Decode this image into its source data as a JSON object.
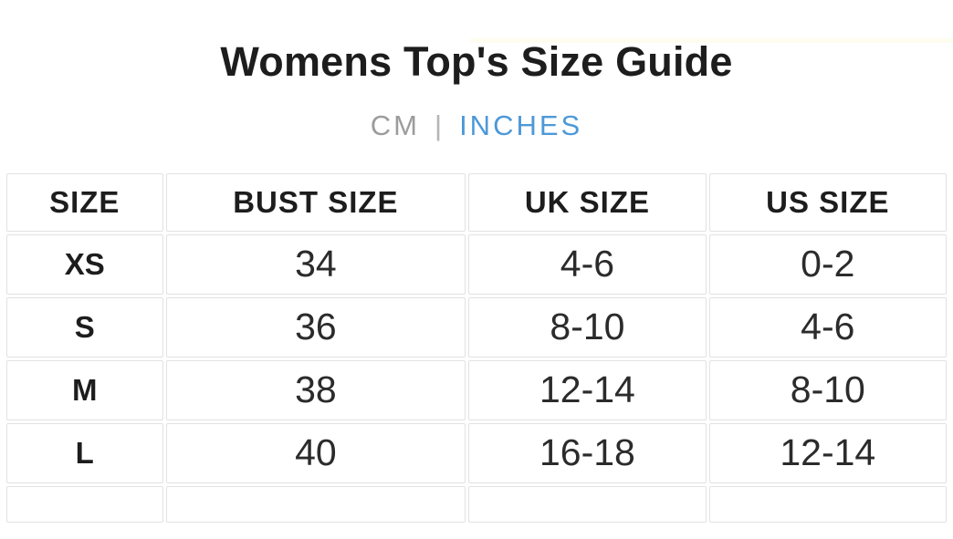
{
  "page": {
    "title": "Womens Top's Size Guide"
  },
  "unit_toggle": {
    "cm_label": "CM",
    "divider": "|",
    "inches_label": "INCHES",
    "selected": "INCHES"
  },
  "size_table": {
    "headers": [
      "SIZE",
      "BUST SIZE",
      "UK SIZE",
      "US SIZE"
    ],
    "rows": [
      {
        "cells": [
          "XS",
          "34",
          "4-6",
          "0-2"
        ]
      },
      {
        "cells": [
          "S",
          "36",
          "8-10",
          "4-6"
        ]
      },
      {
        "cells": [
          "M",
          "38",
          "12-14",
          "8-10"
        ]
      },
      {
        "cells": [
          "L",
          "40",
          "16-18",
          "12-14"
        ]
      }
    ]
  },
  "colors": {
    "accent": "#4d99d8",
    "inactive": "#9c9c9c",
    "divider": "#b4b4b4",
    "border": "#e2e2e2",
    "top_bar": "#fffdf0",
    "text": "#1d1d1d"
  }
}
